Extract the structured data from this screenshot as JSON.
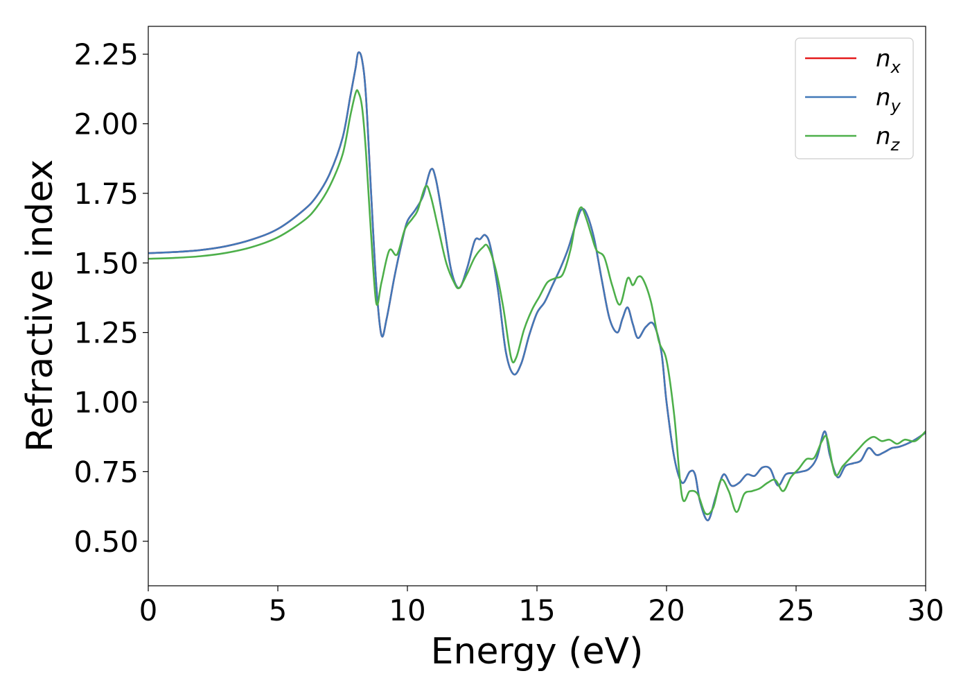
{
  "chart_data": {
    "type": "line",
    "xlabel": "Energy (eV)",
    "ylabel": "Refractive index",
    "xlim": [
      0,
      30
    ],
    "ylim": [
      0.34,
      2.35
    ],
    "xticks": [
      0,
      5,
      10,
      15,
      20,
      25,
      30
    ],
    "xtick_labels": [
      "0",
      "5",
      "10",
      "15",
      "20",
      "25",
      "30"
    ],
    "yticks": [
      0.5,
      0.75,
      1.0,
      1.25,
      1.5,
      1.75,
      2.0,
      2.25
    ],
    "ytick_labels": [
      "0.50",
      "0.75",
      "1.00",
      "1.25",
      "1.50",
      "1.75",
      "2.00",
      "2.25"
    ],
    "grid": false,
    "legend_position": "top-right",
    "series": [
      {
        "name": "n_x",
        "legend_base": "n",
        "legend_sub": "x",
        "color": "#e41a1c",
        "points": [
          [
            0,
            1.535
          ],
          [
            1,
            1.539
          ],
          [
            2,
            1.546
          ],
          [
            3,
            1.56
          ],
          [
            4,
            1.584
          ],
          [
            5,
            1.622
          ],
          [
            6,
            1.69
          ],
          [
            6.5,
            1.74
          ],
          [
            7,
            1.82
          ],
          [
            7.5,
            1.95
          ],
          [
            7.8,
            2.1
          ],
          [
            8.0,
            2.2
          ],
          [
            8.1,
            2.255
          ],
          [
            8.25,
            2.23
          ],
          [
            8.4,
            2.1
          ],
          [
            8.6,
            1.75
          ],
          [
            8.8,
            1.42
          ],
          [
            9.0,
            1.24
          ],
          [
            9.2,
            1.3
          ],
          [
            9.5,
            1.45
          ],
          [
            9.8,
            1.58
          ],
          [
            10.0,
            1.65
          ],
          [
            10.3,
            1.69
          ],
          [
            10.6,
            1.74
          ],
          [
            10.9,
            1.835
          ],
          [
            11.1,
            1.8
          ],
          [
            11.4,
            1.64
          ],
          [
            11.7,
            1.47
          ],
          [
            12.0,
            1.41
          ],
          [
            12.3,
            1.48
          ],
          [
            12.6,
            1.58
          ],
          [
            12.8,
            1.585
          ],
          [
            13.0,
            1.6
          ],
          [
            13.2,
            1.56
          ],
          [
            13.5,
            1.4
          ],
          [
            13.8,
            1.18
          ],
          [
            14.1,
            1.1
          ],
          [
            14.4,
            1.14
          ],
          [
            14.7,
            1.24
          ],
          [
            15.0,
            1.32
          ],
          [
            15.3,
            1.36
          ],
          [
            15.6,
            1.42
          ],
          [
            15.9,
            1.48
          ],
          [
            16.2,
            1.55
          ],
          [
            16.5,
            1.64
          ],
          [
            16.7,
            1.69
          ],
          [
            16.9,
            1.68
          ],
          [
            17.2,
            1.59
          ],
          [
            17.5,
            1.44
          ],
          [
            17.8,
            1.3
          ],
          [
            18.1,
            1.25
          ],
          [
            18.3,
            1.3
          ],
          [
            18.5,
            1.34
          ],
          [
            18.7,
            1.28
          ],
          [
            18.9,
            1.23
          ],
          [
            19.2,
            1.27
          ],
          [
            19.5,
            1.28
          ],
          [
            19.8,
            1.18
          ],
          [
            20.0,
            1.0
          ],
          [
            20.3,
            0.8
          ],
          [
            20.6,
            0.71
          ],
          [
            20.9,
            0.75
          ],
          [
            21.1,
            0.74
          ],
          [
            21.3,
            0.64
          ],
          [
            21.6,
            0.575
          ],
          [
            21.9,
            0.66
          ],
          [
            22.2,
            0.74
          ],
          [
            22.5,
            0.7
          ],
          [
            22.8,
            0.71
          ],
          [
            23.1,
            0.74
          ],
          [
            23.4,
            0.735
          ],
          [
            23.7,
            0.765
          ],
          [
            24.0,
            0.76
          ],
          [
            24.3,
            0.7
          ],
          [
            24.6,
            0.74
          ],
          [
            24.9,
            0.745
          ],
          [
            25.2,
            0.75
          ],
          [
            25.5,
            0.76
          ],
          [
            25.8,
            0.8
          ],
          [
            26.1,
            0.895
          ],
          [
            26.3,
            0.81
          ],
          [
            26.6,
            0.73
          ],
          [
            26.9,
            0.77
          ],
          [
            27.2,
            0.78
          ],
          [
            27.5,
            0.79
          ],
          [
            27.8,
            0.835
          ],
          [
            28.1,
            0.81
          ],
          [
            28.4,
            0.82
          ],
          [
            28.7,
            0.835
          ],
          [
            29.0,
            0.84
          ],
          [
            29.5,
            0.86
          ],
          [
            30.0,
            0.89
          ]
        ]
      },
      {
        "name": "n_y",
        "legend_base": "n",
        "legend_sub": "y",
        "color": "#4178b8",
        "points": [
          [
            0,
            1.535
          ],
          [
            1,
            1.539
          ],
          [
            2,
            1.546
          ],
          [
            3,
            1.56
          ],
          [
            4,
            1.584
          ],
          [
            5,
            1.622
          ],
          [
            6,
            1.69
          ],
          [
            6.5,
            1.74
          ],
          [
            7,
            1.82
          ],
          [
            7.5,
            1.95
          ],
          [
            7.8,
            2.1
          ],
          [
            8.0,
            2.2
          ],
          [
            8.1,
            2.255
          ],
          [
            8.25,
            2.23
          ],
          [
            8.4,
            2.1
          ],
          [
            8.6,
            1.75
          ],
          [
            8.8,
            1.42
          ],
          [
            9.0,
            1.24
          ],
          [
            9.2,
            1.3
          ],
          [
            9.5,
            1.45
          ],
          [
            9.8,
            1.58
          ],
          [
            10.0,
            1.65
          ],
          [
            10.3,
            1.69
          ],
          [
            10.6,
            1.74
          ],
          [
            10.9,
            1.835
          ],
          [
            11.1,
            1.8
          ],
          [
            11.4,
            1.64
          ],
          [
            11.7,
            1.47
          ],
          [
            12.0,
            1.41
          ],
          [
            12.3,
            1.48
          ],
          [
            12.6,
            1.58
          ],
          [
            12.8,
            1.585
          ],
          [
            13.0,
            1.6
          ],
          [
            13.2,
            1.56
          ],
          [
            13.5,
            1.4
          ],
          [
            13.8,
            1.18
          ],
          [
            14.1,
            1.1
          ],
          [
            14.4,
            1.14
          ],
          [
            14.7,
            1.24
          ],
          [
            15.0,
            1.32
          ],
          [
            15.3,
            1.36
          ],
          [
            15.6,
            1.42
          ],
          [
            15.9,
            1.48
          ],
          [
            16.2,
            1.55
          ],
          [
            16.5,
            1.64
          ],
          [
            16.7,
            1.69
          ],
          [
            16.9,
            1.68
          ],
          [
            17.2,
            1.59
          ],
          [
            17.5,
            1.44
          ],
          [
            17.8,
            1.3
          ],
          [
            18.1,
            1.25
          ],
          [
            18.3,
            1.3
          ],
          [
            18.5,
            1.34
          ],
          [
            18.7,
            1.28
          ],
          [
            18.9,
            1.23
          ],
          [
            19.2,
            1.27
          ],
          [
            19.5,
            1.28
          ],
          [
            19.8,
            1.18
          ],
          [
            20.0,
            1.0
          ],
          [
            20.3,
            0.8
          ],
          [
            20.6,
            0.71
          ],
          [
            20.9,
            0.75
          ],
          [
            21.1,
            0.74
          ],
          [
            21.3,
            0.64
          ],
          [
            21.6,
            0.575
          ],
          [
            21.9,
            0.66
          ],
          [
            22.2,
            0.74
          ],
          [
            22.5,
            0.7
          ],
          [
            22.8,
            0.71
          ],
          [
            23.1,
            0.74
          ],
          [
            23.4,
            0.735
          ],
          [
            23.7,
            0.765
          ],
          [
            24.0,
            0.76
          ],
          [
            24.3,
            0.7
          ],
          [
            24.6,
            0.74
          ],
          [
            24.9,
            0.745
          ],
          [
            25.2,
            0.75
          ],
          [
            25.5,
            0.76
          ],
          [
            25.8,
            0.8
          ],
          [
            26.1,
            0.895
          ],
          [
            26.3,
            0.81
          ],
          [
            26.6,
            0.73
          ],
          [
            26.9,
            0.77
          ],
          [
            27.2,
            0.78
          ],
          [
            27.5,
            0.79
          ],
          [
            27.8,
            0.835
          ],
          [
            28.1,
            0.81
          ],
          [
            28.4,
            0.82
          ],
          [
            28.7,
            0.835
          ],
          [
            29.0,
            0.84
          ],
          [
            29.5,
            0.86
          ],
          [
            30.0,
            0.89
          ]
        ]
      },
      {
        "name": "n_z",
        "legend_base": "n",
        "legend_sub": "z",
        "color": "#4daf4a",
        "points": [
          [
            0,
            1.515
          ],
          [
            1,
            1.518
          ],
          [
            2,
            1.524
          ],
          [
            3,
            1.536
          ],
          [
            4,
            1.557
          ],
          [
            5,
            1.592
          ],
          [
            6,
            1.652
          ],
          [
            6.5,
            1.7
          ],
          [
            7,
            1.775
          ],
          [
            7.5,
            1.89
          ],
          [
            7.8,
            2.03
          ],
          [
            8.0,
            2.11
          ],
          [
            8.1,
            2.115
          ],
          [
            8.25,
            2.06
          ],
          [
            8.4,
            1.9
          ],
          [
            8.6,
            1.6
          ],
          [
            8.8,
            1.355
          ],
          [
            9.0,
            1.43
          ],
          [
            9.3,
            1.545
          ],
          [
            9.6,
            1.53
          ],
          [
            9.9,
            1.62
          ],
          [
            10.2,
            1.66
          ],
          [
            10.4,
            1.69
          ],
          [
            10.7,
            1.775
          ],
          [
            10.9,
            1.74
          ],
          [
            11.2,
            1.62
          ],
          [
            11.5,
            1.5
          ],
          [
            11.8,
            1.43
          ],
          [
            12.0,
            1.41
          ],
          [
            12.3,
            1.46
          ],
          [
            12.6,
            1.52
          ],
          [
            12.9,
            1.555
          ],
          [
            13.1,
            1.56
          ],
          [
            13.4,
            1.48
          ],
          [
            13.7,
            1.34
          ],
          [
            14.0,
            1.16
          ],
          [
            14.2,
            1.16
          ],
          [
            14.5,
            1.26
          ],
          [
            14.8,
            1.33
          ],
          [
            15.1,
            1.38
          ],
          [
            15.4,
            1.43
          ],
          [
            15.7,
            1.445
          ],
          [
            16.0,
            1.46
          ],
          [
            16.3,
            1.55
          ],
          [
            16.5,
            1.65
          ],
          [
            16.7,
            1.7
          ],
          [
            16.9,
            1.66
          ],
          [
            17.1,
            1.6
          ],
          [
            17.3,
            1.545
          ],
          [
            17.6,
            1.52
          ],
          [
            17.9,
            1.42
          ],
          [
            18.2,
            1.35
          ],
          [
            18.5,
            1.445
          ],
          [
            18.7,
            1.42
          ],
          [
            18.9,
            1.45
          ],
          [
            19.1,
            1.44
          ],
          [
            19.4,
            1.36
          ],
          [
            19.7,
            1.22
          ],
          [
            20.0,
            1.15
          ],
          [
            20.3,
            0.95
          ],
          [
            20.6,
            0.66
          ],
          [
            20.9,
            0.68
          ],
          [
            21.2,
            0.67
          ],
          [
            21.5,
            0.6
          ],
          [
            21.8,
            0.62
          ],
          [
            22.1,
            0.72
          ],
          [
            22.4,
            0.68
          ],
          [
            22.7,
            0.605
          ],
          [
            23.0,
            0.67
          ],
          [
            23.3,
            0.68
          ],
          [
            23.6,
            0.69
          ],
          [
            23.9,
            0.71
          ],
          [
            24.2,
            0.72
          ],
          [
            24.5,
            0.68
          ],
          [
            24.8,
            0.73
          ],
          [
            25.1,
            0.76
          ],
          [
            25.4,
            0.795
          ],
          [
            25.7,
            0.8
          ],
          [
            26.0,
            0.86
          ],
          [
            26.2,
            0.87
          ],
          [
            26.5,
            0.74
          ],
          [
            26.8,
            0.77
          ],
          [
            27.1,
            0.8
          ],
          [
            27.4,
            0.83
          ],
          [
            27.7,
            0.86
          ],
          [
            28.0,
            0.875
          ],
          [
            28.3,
            0.86
          ],
          [
            28.6,
            0.865
          ],
          [
            28.9,
            0.85
          ],
          [
            29.2,
            0.865
          ],
          [
            29.6,
            0.86
          ],
          [
            30.0,
            0.895
          ]
        ]
      }
    ]
  }
}
